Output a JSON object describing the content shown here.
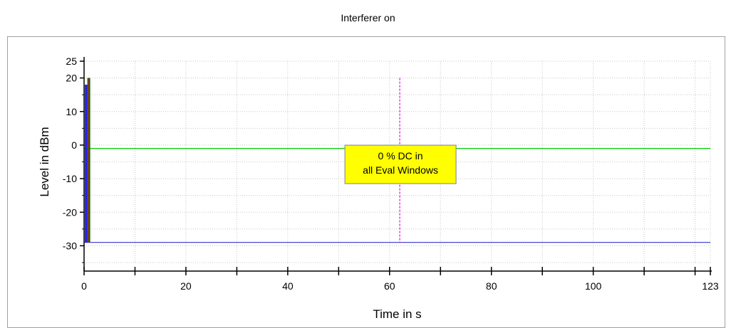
{
  "chart_data": {
    "type": "line",
    "title": "Interferer on",
    "xlabel": "Time in s",
    "ylabel": "Level in dBm",
    "xlim": [
      0,
      123
    ],
    "ylim": [
      -35,
      25
    ],
    "xticks": [
      0,
      20,
      40,
      60,
      80,
      100,
      123
    ],
    "xtick_labels": [
      "0",
      "20",
      "40",
      "60",
      "80",
      "100",
      "123"
    ],
    "yticks": [
      25,
      20,
      10,
      0,
      -10,
      -20,
      -30
    ],
    "ytick_labels": [
      "25",
      "20",
      "10",
      "0",
      "-10",
      "-20",
      "-30"
    ],
    "grid": true,
    "series": [
      {
        "color": "#00cc00",
        "x": [
          0,
          123
        ],
        "y": [
          -1,
          -1
        ]
      },
      {
        "color": "#3333cc",
        "x": [
          0,
          123
        ],
        "y": [
          -29,
          -29
        ]
      }
    ],
    "bursts": [
      {
        "color": "#2222ee",
        "x0": 0.15,
        "x1": 0.65,
        "y_low": -29,
        "y_high": 18
      },
      {
        "color": "#006600",
        "x0": 0.65,
        "x1": 1.2,
        "y_low": -29,
        "y_high": 20
      },
      {
        "color": "#8b3a1a",
        "x0": 0.65,
        "x1": 0.85,
        "y_low": -29,
        "y_high": 20
      }
    ],
    "marker": {
      "color": "#ee00ee",
      "x": 62,
      "y_low": -29,
      "y_high": 20
    },
    "annotation": {
      "lines": [
        "0 % DC in",
        "all Eval Windows"
      ],
      "x": 62,
      "y": -3,
      "fill": "#ffff00"
    }
  }
}
